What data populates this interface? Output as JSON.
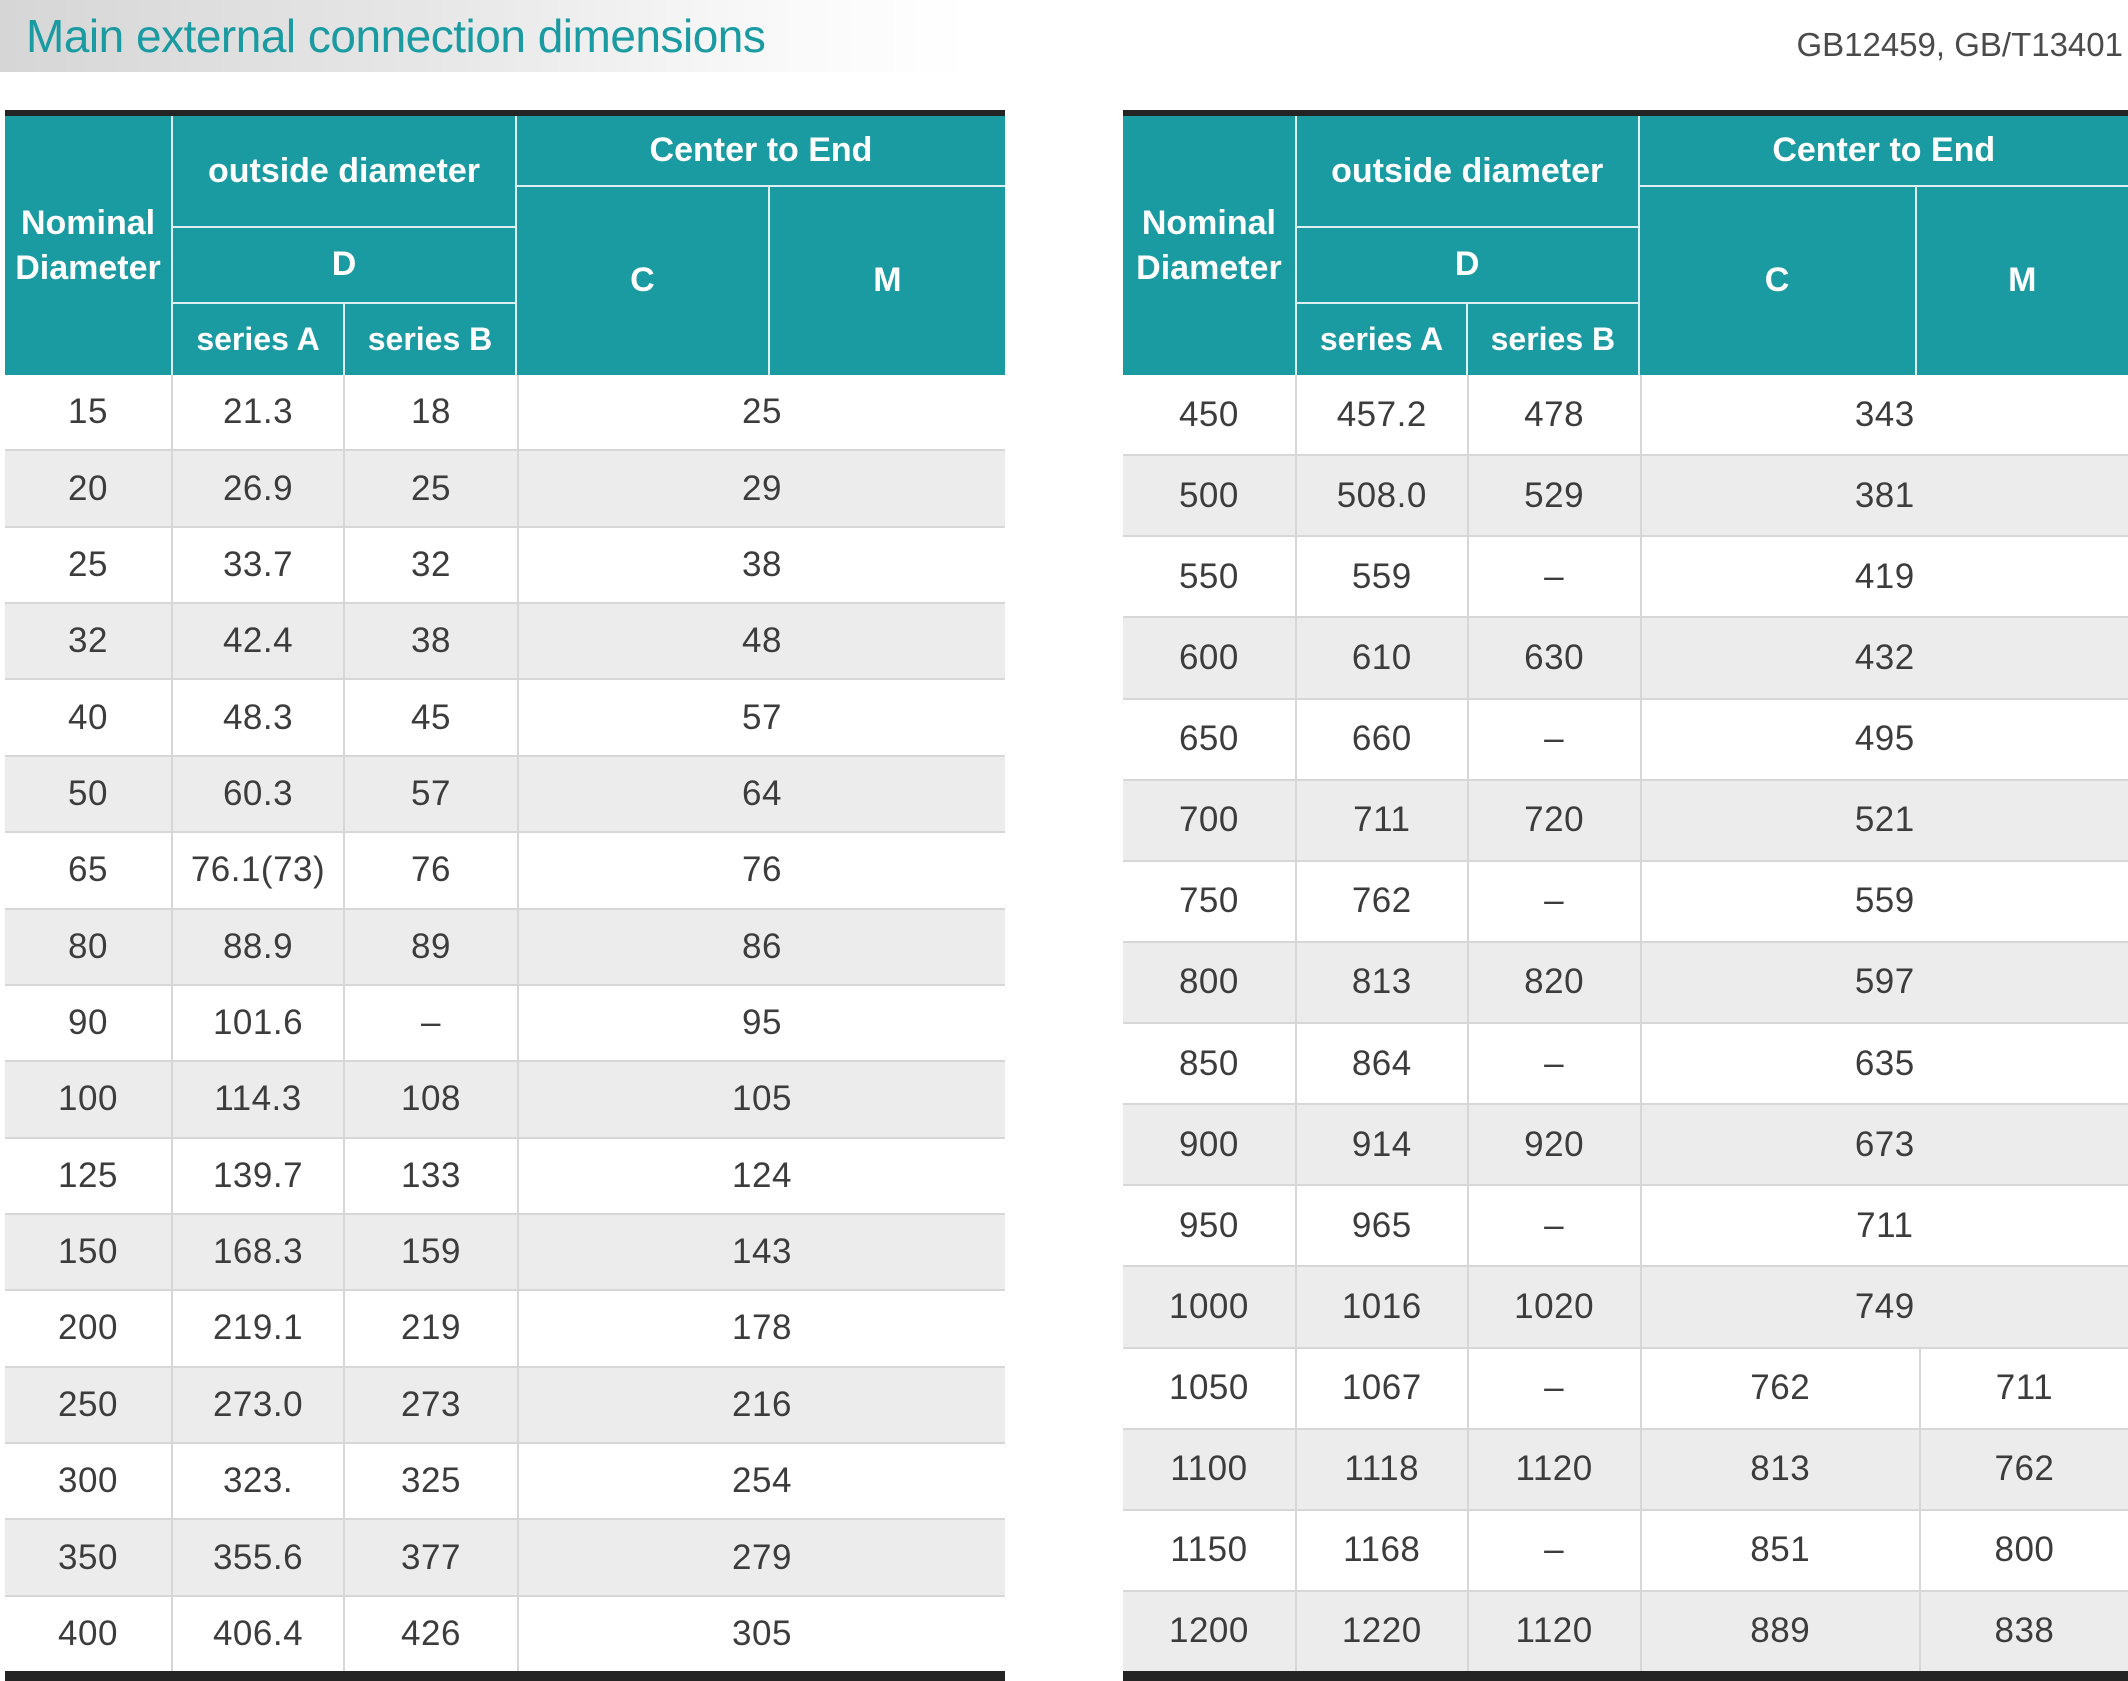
{
  "header": {
    "title": "Main external connection dimensions",
    "standards": "GB12459, GB/T13401"
  },
  "colors": {
    "teal": "#1a9aa1",
    "bar_dark": "#242424",
    "row_alt": "#ececec",
    "title_text": "#1a9aa1"
  },
  "table_header": {
    "nominal": "Nominal Diameter",
    "outside_diameter": "outside diameter",
    "d": "D",
    "series_a": "series A",
    "series_b": "series B",
    "center_to_end": "Center to End",
    "c": "C",
    "m": "M"
  },
  "tables": [
    {
      "id": "left",
      "rows": [
        {
          "nd": "15",
          "a": "21.3",
          "b": "18",
          "cm": "25"
        },
        {
          "nd": "20",
          "a": "26.9",
          "b": "25",
          "cm": "29"
        },
        {
          "nd": "25",
          "a": "33.7",
          "b": "32",
          "cm": "38"
        },
        {
          "nd": "32",
          "a": "42.4",
          "b": "38",
          "cm": "48"
        },
        {
          "nd": "40",
          "a": "48.3",
          "b": "45",
          "cm": "57"
        },
        {
          "nd": "50",
          "a": "60.3",
          "b": "57",
          "cm": "64"
        },
        {
          "nd": "65",
          "a": "76.1(73)",
          "b": "76",
          "cm": "76"
        },
        {
          "nd": "80",
          "a": "88.9",
          "b": "89",
          "cm": "86"
        },
        {
          "nd": "90",
          "a": "101.6",
          "b": "–",
          "cm": "95"
        },
        {
          "nd": "100",
          "a": "114.3",
          "b": "108",
          "cm": "105"
        },
        {
          "nd": "125",
          "a": "139.7",
          "b": "133",
          "cm": "124"
        },
        {
          "nd": "150",
          "a": "168.3",
          "b": "159",
          "cm": "143"
        },
        {
          "nd": "200",
          "a": "219.1",
          "b": "219",
          "cm": "178"
        },
        {
          "nd": "250",
          "a": "273.0",
          "b": "273",
          "cm": "216"
        },
        {
          "nd": "300",
          "a": "323.",
          "b": "325",
          "cm": "254"
        },
        {
          "nd": "350",
          "a": "355.6",
          "b": "377",
          "cm": "279"
        },
        {
          "nd": "400",
          "a": "406.4",
          "b": "426",
          "cm": "305"
        }
      ]
    },
    {
      "id": "right",
      "rows": [
        {
          "nd": "450",
          "a": "457.2",
          "b": "478",
          "cm": "343"
        },
        {
          "nd": "500",
          "a": "508.0",
          "b": "529",
          "cm": "381"
        },
        {
          "nd": "550",
          "a": "559",
          "b": "–",
          "cm": "419"
        },
        {
          "nd": "600",
          "a": "610",
          "b": "630",
          "cm": "432"
        },
        {
          "nd": "650",
          "a": "660",
          "b": "–",
          "cm": "495"
        },
        {
          "nd": "700",
          "a": "711",
          "b": "720",
          "cm": "521"
        },
        {
          "nd": "750",
          "a": "762",
          "b": "–",
          "cm": "559"
        },
        {
          "nd": "800",
          "a": "813",
          "b": "820",
          "cm": "597"
        },
        {
          "nd": "850",
          "a": "864",
          "b": "–",
          "cm": "635"
        },
        {
          "nd": "900",
          "a": "914",
          "b": "920",
          "cm": "673"
        },
        {
          "nd": "950",
          "a": "965",
          "b": "–",
          "cm": "711"
        },
        {
          "nd": "1000",
          "a": "1016",
          "b": "1020",
          "cm": "749"
        },
        {
          "nd": "1050",
          "a": "1067",
          "b": "–",
          "c": "762",
          "m": "711"
        },
        {
          "nd": "1100",
          "a": "1118",
          "b": "1120",
          "c": "813",
          "m": "762"
        },
        {
          "nd": "1150",
          "a": "1168",
          "b": "–",
          "c": "851",
          "m": "800"
        },
        {
          "nd": "1200",
          "a": "1220",
          "b": "1120",
          "c": "889",
          "m": "838"
        }
      ]
    }
  ]
}
